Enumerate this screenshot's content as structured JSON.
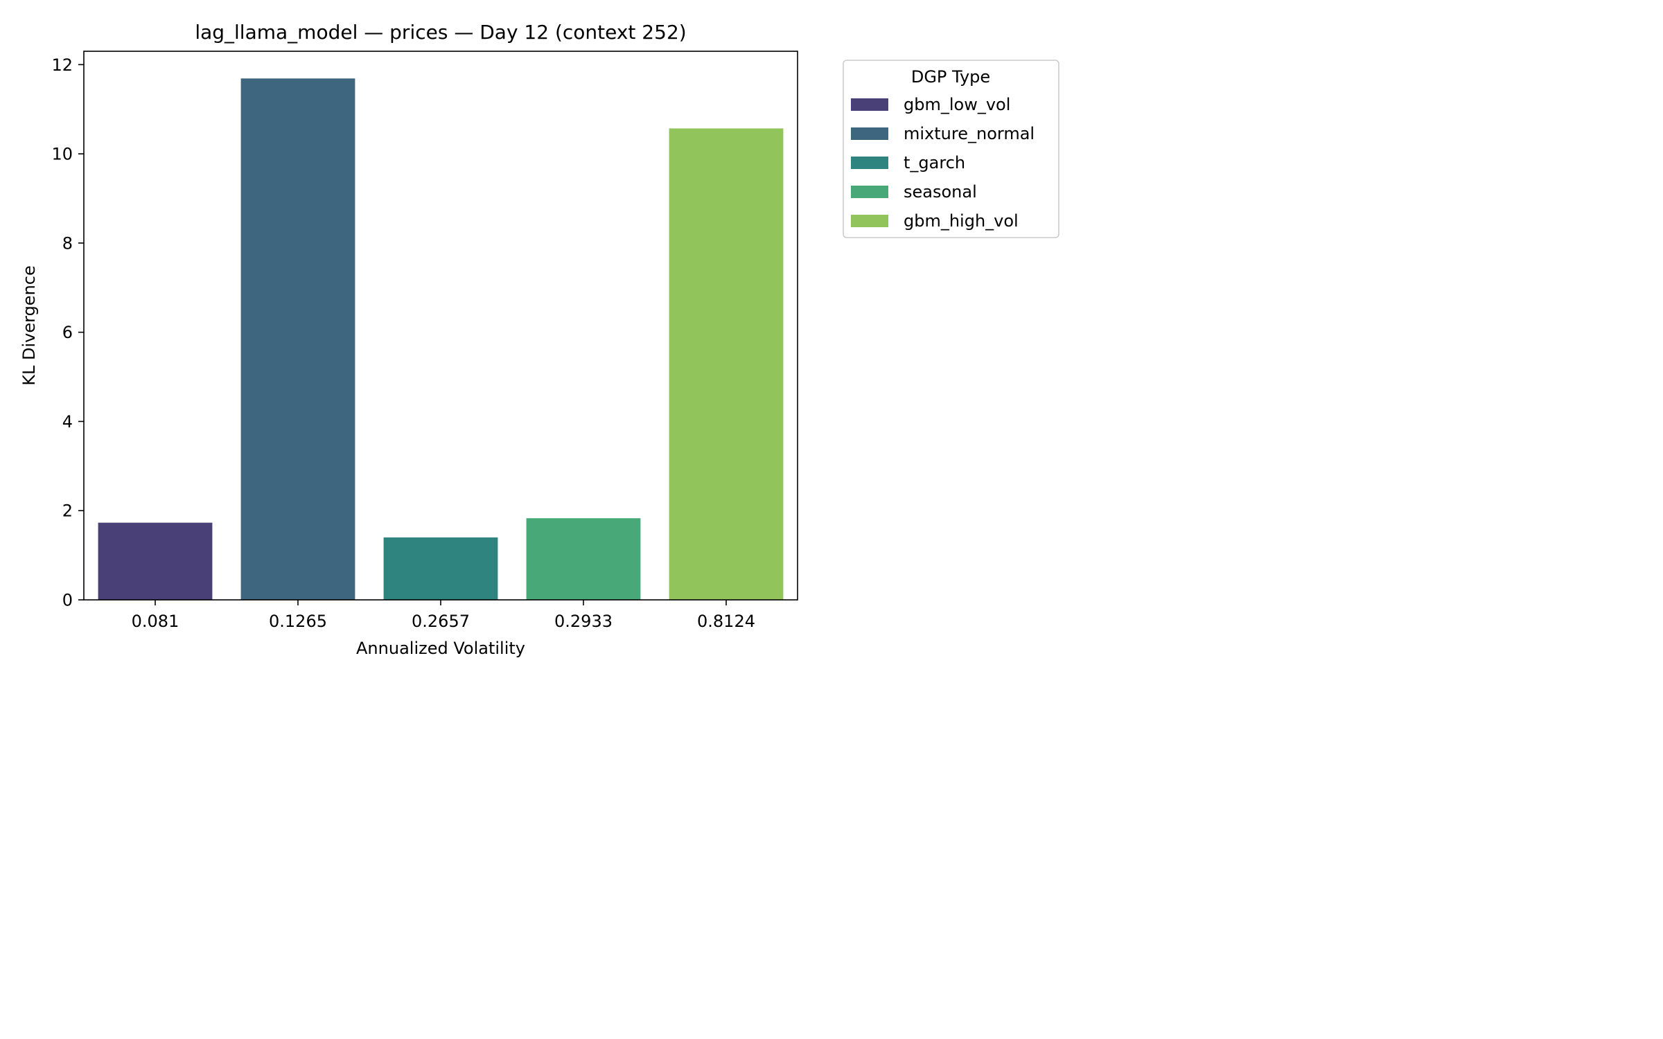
{
  "chart_data": {
    "type": "bar",
    "title": "lag_llama_model — prices — Day 12 (context 252)",
    "xlabel": "Annualized Volatility",
    "ylabel": "KL Divergence",
    "ylim": [
      0,
      12.3
    ],
    "yticks": [
      "0",
      "2",
      "4",
      "6",
      "8",
      "10",
      "12"
    ],
    "categories": [
      "0.081",
      "0.1265",
      "0.2657",
      "0.2933",
      "0.8124"
    ],
    "values": [
      1.73,
      11.69,
      1.4,
      1.83,
      10.57
    ],
    "bar_colors": [
      "#4a4078",
      "#3e667f",
      "#2f8480",
      "#48a878",
      "#91c45a"
    ],
    "legend": {
      "title": "DGP Type",
      "placement": "outside-top-right",
      "entries": [
        {
          "label": "gbm_low_vol",
          "color": "#4a4078"
        },
        {
          "label": "mixture_normal",
          "color": "#3e667f"
        },
        {
          "label": "t_garch",
          "color": "#2f8480"
        },
        {
          "label": "seasonal",
          "color": "#48a878"
        },
        {
          "label": "gbm_high_vol",
          "color": "#91c45a"
        }
      ]
    },
    "grid": false
  }
}
